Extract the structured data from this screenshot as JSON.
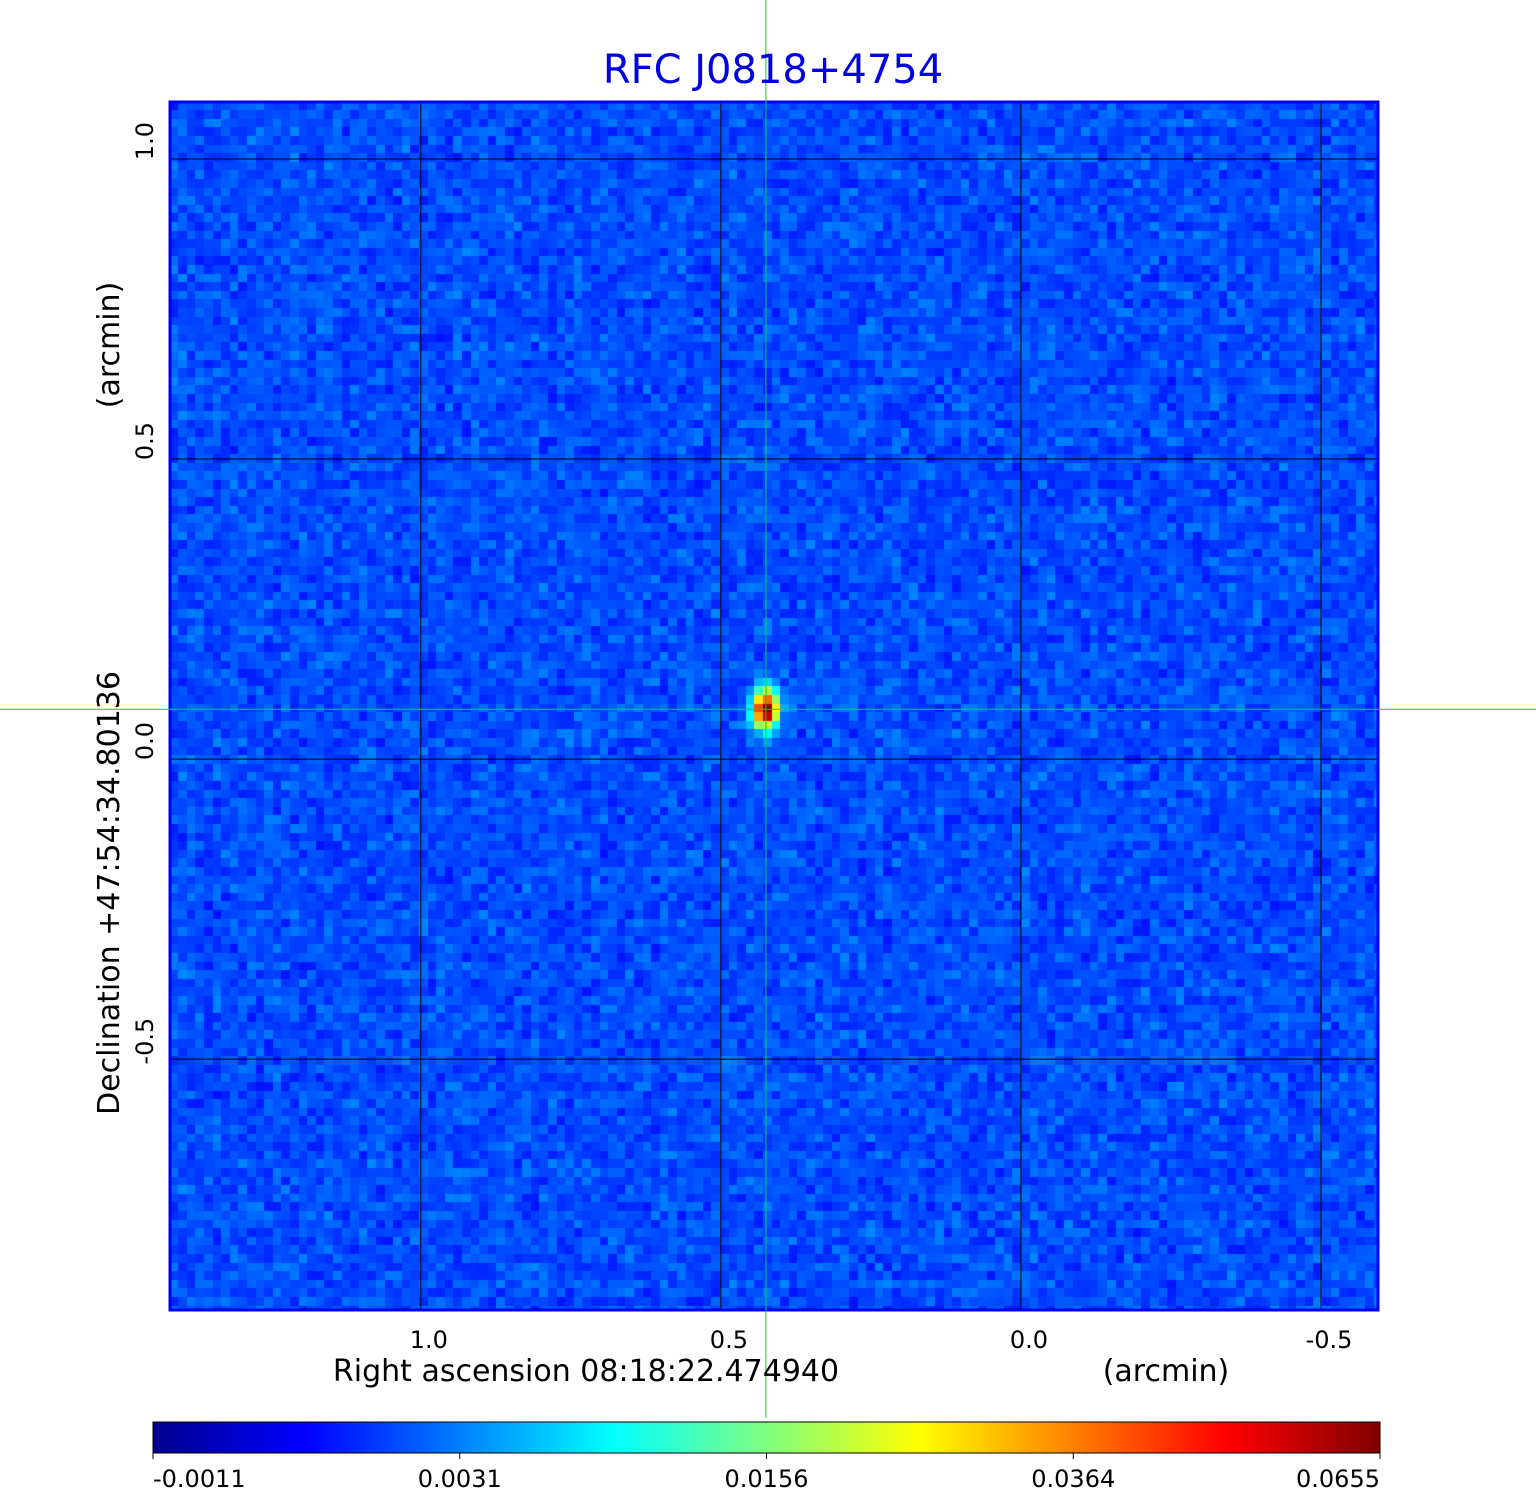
{
  "chart_data": {
    "type": "heatmap",
    "title": "RFC J0818+4754",
    "xlabel": "Right ascension  08:18:22.474940",
    "xunit": "(arcmin)",
    "ylabel": "Declination  +47:54:34.80136",
    "yunit": "(arcmin)",
    "xlim": [
      1.418,
      -0.595
    ],
    "ylim": [
      -0.918,
      1.095
    ],
    "xticks": [
      {
        "value": 1.0,
        "label": "1.0"
      },
      {
        "value": 0.5,
        "label": "0.5"
      },
      {
        "value": 0.0,
        "label": "0.0"
      },
      {
        "value": -0.5,
        "label": "-0.5"
      }
    ],
    "yticks": [
      {
        "value": 1.0,
        "label": "1.0"
      },
      {
        "value": 0.5,
        "label": "0.5"
      },
      {
        "value": 0.0,
        "label": "0.0"
      },
      {
        "value": -0.5,
        "label": "-0.5"
      }
    ],
    "grid": true,
    "colormap": "jet",
    "crosshair": {
      "ra": 0.425,
      "dec": 0.083
    },
    "source_peak": {
      "ra": 0.425,
      "dec": 0.083,
      "value": 0.0655
    },
    "colorbar": {
      "placement": "bottom",
      "ticks": [
        "-0.0011",
        "0.0031",
        "0.0156",
        "0.0364",
        "0.0655"
      ]
    },
    "colors": {
      "title": "#0000e0",
      "frame": "#0000ff",
      "crosshair": "#00dd00",
      "grid": "#000000"
    }
  }
}
